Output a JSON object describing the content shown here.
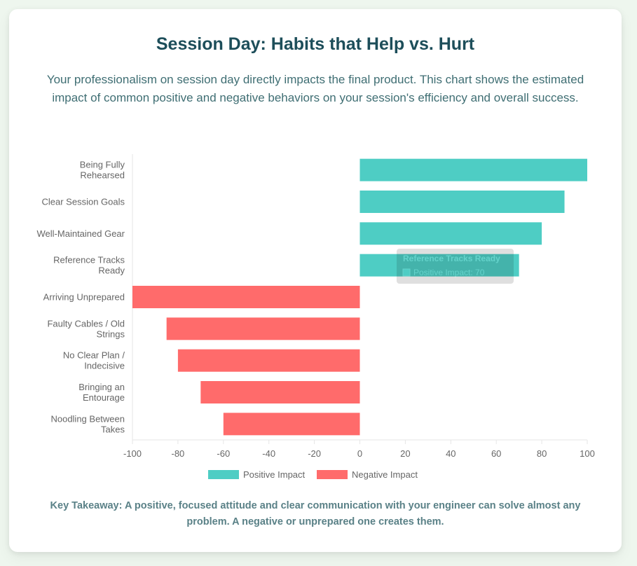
{
  "page": {
    "title": "Session Day: Habits that Help vs. Hurt",
    "subtitle": "Your professionalism on session day directly impacts the final product. This chart shows the estimated impact of common positive and negative behaviors on your session's efficiency and overall success.",
    "takeaway": "Key Takeaway: A positive, focused attitude and clear communication with your engineer can solve almost any problem. A negative or unprepared one creates them."
  },
  "colors": {
    "positive": "#4ecdc4",
    "negative": "#ff6b6b",
    "title": "#1d4e5a",
    "text": "#666666",
    "grid": "#e6e6e6"
  },
  "tooltip": {
    "title": "Reference Tracks Ready",
    "label": "Positive Impact: 70"
  },
  "chart_data": {
    "type": "bar",
    "orientation": "horizontal",
    "categories": [
      [
        "Being Fully",
        "Rehearsed"
      ],
      [
        "Clear Session Goals"
      ],
      [
        "Well-Maintained Gear"
      ],
      [
        "Reference Tracks",
        "Ready"
      ],
      [
        "Arriving Unprepared"
      ],
      [
        "Faulty Cables / Old",
        "Strings"
      ],
      [
        "No Clear Plan /",
        "Indecisive"
      ],
      [
        "Bringing an",
        "Entourage"
      ],
      [
        "Noodling Between",
        "Takes"
      ]
    ],
    "series": [
      {
        "name": "Positive Impact",
        "color": "#4ecdc4",
        "values": [
          100,
          90,
          80,
          70,
          0,
          0,
          0,
          0,
          0
        ]
      },
      {
        "name": "Negative Impact",
        "color": "#ff6b6b",
        "values": [
          0,
          0,
          0,
          0,
          -100,
          -85,
          -80,
          -70,
          -60
        ]
      }
    ],
    "xlim": [
      -100,
      100
    ],
    "xticks": [
      -100,
      -80,
      -60,
      -40,
      -20,
      0,
      20,
      40,
      60,
      80,
      100
    ],
    "stacked": true,
    "legend": "bottom",
    "grid": false
  }
}
